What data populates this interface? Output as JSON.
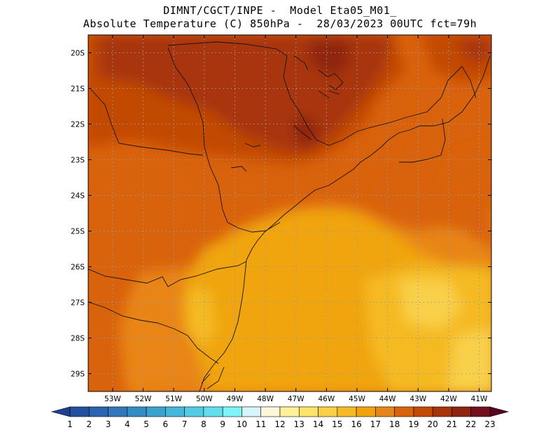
{
  "header": {
    "line1": "DIMNT/CGCT/INPE -  Model Eta05_M01_",
    "line2": "Absolute Temperature (C) 850hPa -  28/03/2023 00UTC fct=79h"
  },
  "map": {
    "lat_labels": [
      "20S",
      "21S",
      "22S",
      "23S",
      "24S",
      "25S",
      "26S",
      "27S",
      "28S",
      "29S"
    ],
    "lon_labels": [
      "53W",
      "52W",
      "51W",
      "50W",
      "49W",
      "48W",
      "47W",
      "46W",
      "45W",
      "44W",
      "43W",
      "42W",
      "41W"
    ],
    "lat_range": [
      -29.5,
      -19.5
    ],
    "lon_range": [
      -53.8,
      -40.6
    ],
    "grid": "dotted"
  },
  "colorbar": {
    "labels": [
      "1",
      "2",
      "3",
      "4",
      "5",
      "6",
      "7",
      "8",
      "9",
      "10",
      "11",
      "12",
      "13",
      "14",
      "15",
      "16",
      "17",
      "18",
      "19",
      "20",
      "21",
      "22",
      "23"
    ],
    "colors": [
      "#1f3f8f",
      "#24519f",
      "#2a63ae",
      "#3078bb",
      "#358cc5",
      "#3ba2cf",
      "#45b7da",
      "#52cbe4",
      "#62dfed",
      "#7ef4f8",
      "#d6f6fb",
      "#fff6dc",
      "#fff09a",
      "#fde36a",
      "#f9d048",
      "#f5ba24",
      "#f0a40a",
      "#e88518",
      "#d9620c",
      "#c24a05",
      "#a8350a",
      "#8f250f",
      "#73101e",
      "#5a0020"
    ]
  }
}
